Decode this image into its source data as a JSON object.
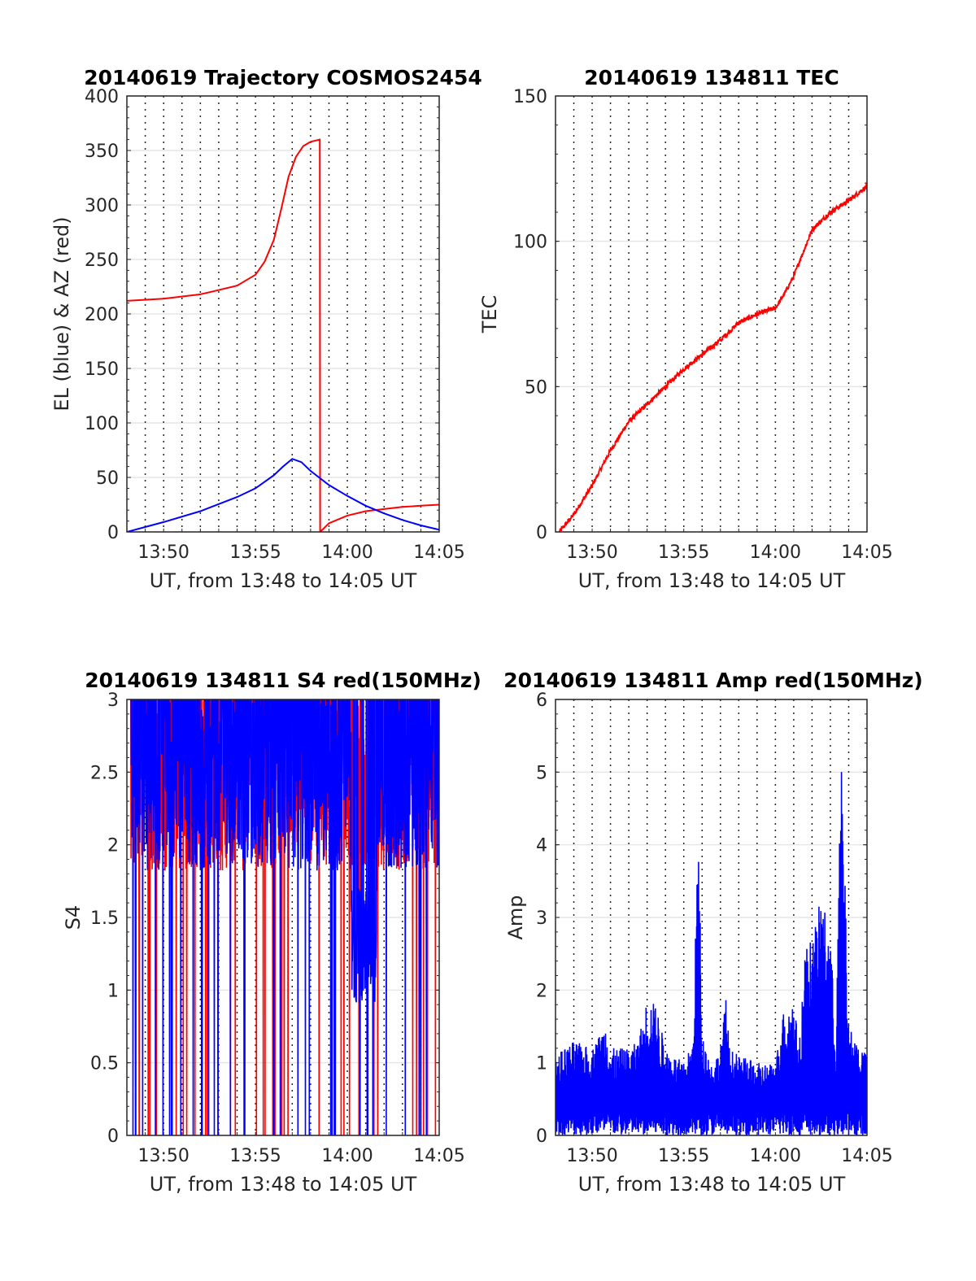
{
  "figure": {
    "background": "#ffffff",
    "series_colors": {
      "red": "#ff0000",
      "blue": "#0000ff"
    }
  },
  "chart_data": [
    {
      "id": "trajectory",
      "type": "line",
      "title": "20140619 Trajectory COSMOS2454",
      "xlabel": "UT, from 13:48 to 14:05 UT",
      "ylabel": "EL (blue) & AZ (red)",
      "xlim": [
        0,
        17
      ],
      "ylim": [
        0,
        400
      ],
      "xtick_labels": [
        "13:50",
        "13:55",
        "14:00",
        "14:05"
      ],
      "ytick_labels": [
        "0",
        "50",
        "100",
        "150",
        "200",
        "250",
        "300",
        "350",
        "400"
      ],
      "grid": "dotted vertical, light horizontal",
      "series": [
        {
          "color": "#ff0000",
          "x_minutes_after_1348": [
            0,
            2,
            4,
            6,
            7,
            7.5,
            8,
            8.4,
            8.8,
            9.2,
            9.6,
            10,
            10.5,
            10.52,
            11,
            12,
            13,
            14,
            15,
            16,
            17
          ],
          "values": [
            212,
            214,
            218,
            226,
            236,
            248,
            268,
            296,
            326,
            344,
            354,
            358,
            360,
            0,
            8,
            15,
            19,
            21,
            23,
            24,
            25
          ]
        },
        {
          "color": "#0000ff",
          "x_minutes_after_1348": [
            0,
            2,
            4,
            6,
            7,
            8,
            8.5,
            9,
            9.5,
            10,
            11,
            12,
            13,
            14,
            15,
            16,
            17
          ],
          "values": [
            0,
            9,
            19,
            32,
            40,
            52,
            60,
            67,
            64,
            56,
            43,
            33,
            24,
            17,
            11,
            6,
            2
          ]
        }
      ]
    },
    {
      "id": "tec",
      "type": "line",
      "title": "20140619 134811 TEC",
      "xlabel": "UT, from 13:48 to 14:05 UT",
      "ylabel": "TEC",
      "xlim": [
        0,
        17
      ],
      "ylim": [
        0,
        150
      ],
      "xtick_labels": [
        "13:50",
        "13:55",
        "14:00",
        "14:05"
      ],
      "ytick_labels": [
        "0",
        "50",
        "100",
        "150"
      ],
      "grid": "dotted vertical, light horizontal",
      "series": [
        {
          "color": "#ff0000",
          "x_minutes_after_1348": [
            0.2,
            1,
            2,
            3,
            3.5,
            4,
            5,
            6,
            7,
            8,
            9,
            10,
            11,
            12,
            12.5,
            13,
            13.5,
            14,
            15,
            16,
            17
          ],
          "values": [
            0,
            6,
            16,
            28,
            33,
            38,
            44,
            50,
            56,
            61,
            66,
            72,
            75,
            77,
            82,
            88,
            96,
            104,
            110,
            114,
            119
          ]
        }
      ]
    },
    {
      "id": "s4",
      "type": "line",
      "title": "20140619 134811 S4 red(150MHz)",
      "xlabel": "UT, from 13:48 to 14:05 UT",
      "ylabel": "S4",
      "xlim": [
        0,
        17
      ],
      "ylim": [
        0,
        3
      ],
      "xtick_labels": [
        "13:50",
        "13:55",
        "14:00",
        "14:05"
      ],
      "ytick_labels": [
        "0",
        "0.5",
        "1",
        "1.5",
        "2",
        "2.5",
        "3"
      ],
      "grid": "dotted vertical, light horizontal",
      "series": [
        {
          "color": "#ff0000",
          "description_note": "dense noisy trace, mostly between 1.5 and 3, dips to 0"
        },
        {
          "color": "#0000ff",
          "description_note": "dense noisy trace, mostly between 1.5 and 3, ~1.1 near 14:01-14:03"
        }
      ]
    },
    {
      "id": "amp",
      "type": "line",
      "title": "20140619 134811 Amp red(150MHz)",
      "xlabel": "UT, from 13:48 to 14:05 UT",
      "ylabel": "Amp",
      "xlim": [
        0,
        17
      ],
      "ylim": [
        0,
        6
      ],
      "xtick_labels": [
        "13:50",
        "13:55",
        "14:00",
        "14:05"
      ],
      "ytick_labels": [
        "0",
        "1",
        "2",
        "3",
        "4",
        "5",
        "6"
      ],
      "grid": "dotted vertical, light horizontal",
      "series": [
        {
          "color": "#0000ff",
          "envelope_x_minutes_after_1348": [
            0,
            1,
            2,
            2.8,
            3,
            4,
            4.5,
            5,
            5.5,
            6,
            7,
            7.5,
            7.8,
            8,
            8.5,
            9,
            9.3,
            9.5,
            10,
            11,
            12,
            12.4,
            13,
            13.3,
            13.6,
            14,
            14.5,
            15,
            15.3,
            15.6,
            16,
            17
          ],
          "peak_values": [
            1.1,
            1.3,
            1.2,
            1.6,
            1.2,
            1.2,
            1.3,
            1.9,
            1.8,
            1.2,
            1.0,
            1.3,
            4.4,
            1.4,
            1.0,
            1.2,
            1.9,
            1.2,
            1.1,
            1.0,
            1.0,
            1.7,
            1.9,
            1.2,
            2.6,
            2.7,
            3.3,
            2.8,
            1.3,
            5.4,
            1.5,
            1.1
          ]
        }
      ]
    }
  ]
}
